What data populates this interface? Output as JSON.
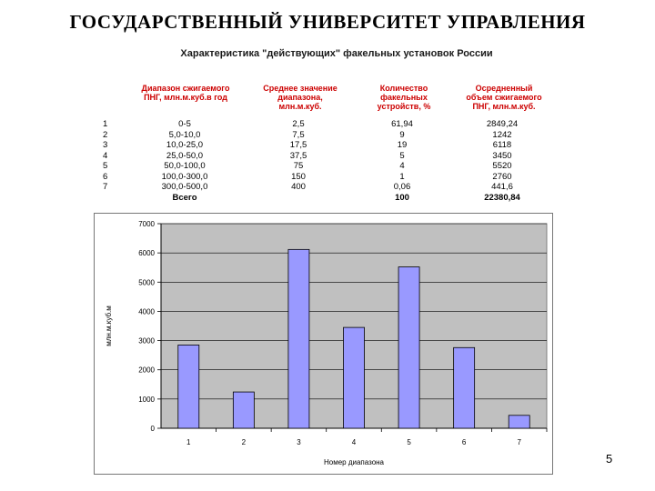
{
  "slide": {
    "title": "ГОСУДАРСТВЕННЫЙ УНИВЕРСИТЕТ УПРАВЛЕНИЯ",
    "page_number": "5"
  },
  "table": {
    "title": "Характеристика \"действующих\" факельных установок России",
    "headers": [
      "Диапазон сжигаемого\nПНГ, млн.м.куб.в год",
      "Среднее значение\nдиапазона,\nмлн.м.куб.",
      "Количество\nфакельных\nустройств, %",
      "Осредненный\nобъем сжигаемого\nПНГ, млн.м.куб."
    ],
    "rows": [
      {
        "n": "1",
        "range": "0-5",
        "avg": "2,5",
        "count": "61,94",
        "volume": "2849,24"
      },
      {
        "n": "2",
        "range": "5,0-10,0",
        "avg": "7,5",
        "count": "9",
        "volume": "1242"
      },
      {
        "n": "3",
        "range": "10,0-25,0",
        "avg": "17,5",
        "count": "19",
        "volume": "6118"
      },
      {
        "n": "4",
        "range": "25,0-50,0",
        "avg": "37,5",
        "count": "5",
        "volume": "3450"
      },
      {
        "n": "5",
        "range": "50,0-100,0",
        "avg": "75",
        "count": "4",
        "volume": "5520"
      },
      {
        "n": "6",
        "range": "100,0-300,0",
        "avg": "150",
        "count": "1",
        "volume": "2760"
      },
      {
        "n": "7",
        "range": "300,0-500,0",
        "avg": "400",
        "count": "0,06",
        "volume": "441,6"
      }
    ],
    "total": {
      "label": "Всего",
      "count": "100",
      "volume": "22380,84"
    }
  },
  "chart_data": {
    "type": "bar",
    "categories": [
      "1",
      "2",
      "3",
      "4",
      "5",
      "6",
      "7"
    ],
    "values": [
      2849.24,
      1242,
      6118,
      3450,
      5520,
      2760,
      441.6
    ],
    "xlabel": "Номер диапазона",
    "ylabel": "млн.м.куб.м",
    "ylim": [
      0,
      7000
    ],
    "yticks": [
      0,
      1000,
      2000,
      3000,
      4000,
      5000,
      6000,
      7000
    ],
    "grid": true,
    "legend": "none",
    "bar_color": "#9999ff",
    "plot_background": "#c0c0c0"
  }
}
